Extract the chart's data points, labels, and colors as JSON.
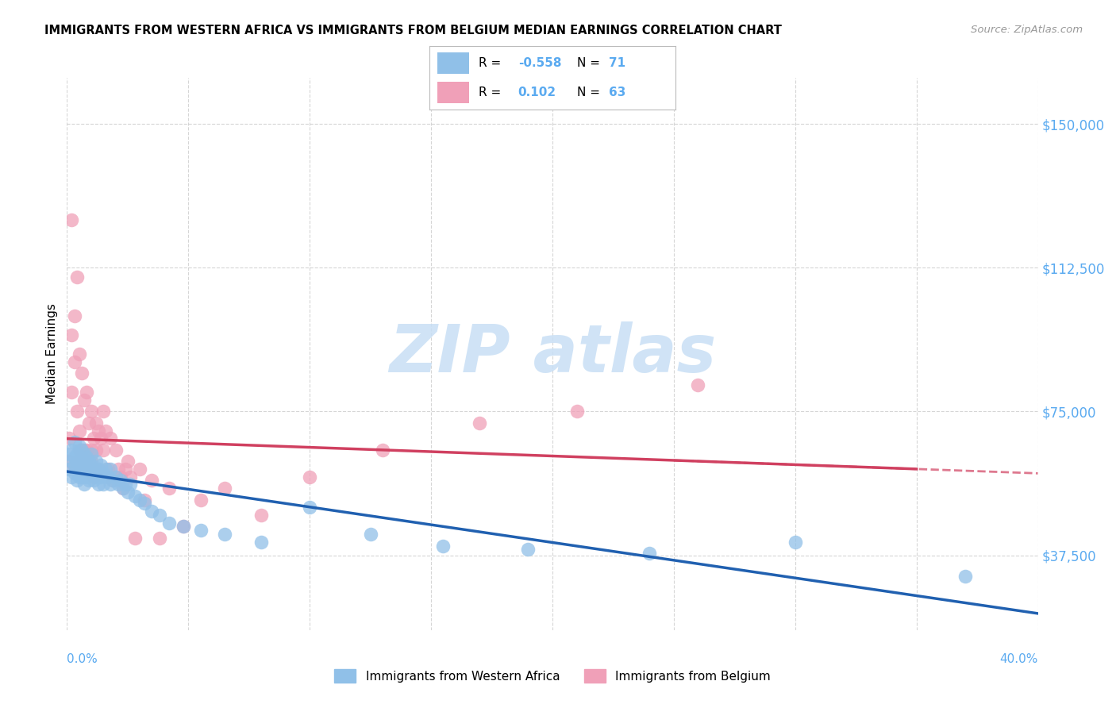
{
  "title": "IMMIGRANTS FROM WESTERN AFRICA VS IMMIGRANTS FROM BELGIUM MEDIAN EARNINGS CORRELATION CHART",
  "source_text": "Source: ZipAtlas.com",
  "ylabel": "Median Earnings",
  "yticks": [
    37500,
    75000,
    112500,
    150000
  ],
  "ytick_labels": [
    "$37,500",
    "$75,000",
    "$112,500",
    "$150,000"
  ],
  "xmin": 0.0,
  "xmax": 0.4,
  "ymin": 18000,
  "ymax": 162000,
  "legend_label_blue": "Immigrants from Western Africa",
  "legend_label_pink": "Immigrants from Belgium",
  "color_blue": "#90C0E8",
  "color_pink": "#F0A0B8",
  "color_blue_line": "#2060B0",
  "color_pink_line": "#D04060",
  "color_axis_labels": "#5AAAF0",
  "watermark_color": "#C8DFF5",
  "blue_scatter_x": [
    0.001,
    0.001,
    0.002,
    0.002,
    0.002,
    0.003,
    0.003,
    0.003,
    0.003,
    0.004,
    0.004,
    0.004,
    0.005,
    0.005,
    0.005,
    0.005,
    0.006,
    0.006,
    0.006,
    0.007,
    0.007,
    0.007,
    0.007,
    0.008,
    0.008,
    0.008,
    0.009,
    0.009,
    0.009,
    0.01,
    0.01,
    0.01,
    0.011,
    0.011,
    0.012,
    0.012,
    0.013,
    0.013,
    0.014,
    0.014,
    0.015,
    0.015,
    0.016,
    0.017,
    0.018,
    0.018,
    0.019,
    0.02,
    0.021,
    0.022,
    0.023,
    0.024,
    0.025,
    0.026,
    0.028,
    0.03,
    0.032,
    0.035,
    0.038,
    0.042,
    0.048,
    0.055,
    0.065,
    0.08,
    0.1,
    0.125,
    0.155,
    0.19,
    0.24,
    0.3,
    0.37
  ],
  "blue_scatter_y": [
    64000,
    60000,
    65000,
    62000,
    58000,
    63000,
    61000,
    67000,
    59000,
    64000,
    62000,
    57000,
    66000,
    61000,
    58000,
    63000,
    60000,
    65000,
    58000,
    62000,
    64000,
    59000,
    56000,
    63000,
    61000,
    58000,
    60000,
    62000,
    57000,
    64000,
    59000,
    61000,
    60000,
    57000,
    62000,
    58000,
    60000,
    56000,
    61000,
    58000,
    59000,
    56000,
    60000,
    58000,
    56000,
    60000,
    57000,
    58000,
    56000,
    57000,
    55000,
    56000,
    54000,
    56000,
    53000,
    52000,
    51000,
    49000,
    48000,
    46000,
    45000,
    44000,
    43000,
    41000,
    50000,
    43000,
    40000,
    39000,
    38000,
    41000,
    32000
  ],
  "pink_scatter_x": [
    0.001,
    0.001,
    0.002,
    0.002,
    0.002,
    0.003,
    0.003,
    0.003,
    0.004,
    0.004,
    0.004,
    0.005,
    0.005,
    0.005,
    0.006,
    0.006,
    0.006,
    0.007,
    0.007,
    0.007,
    0.008,
    0.008,
    0.008,
    0.009,
    0.009,
    0.01,
    0.01,
    0.01,
    0.011,
    0.011,
    0.012,
    0.012,
    0.013,
    0.013,
    0.014,
    0.015,
    0.015,
    0.016,
    0.017,
    0.018,
    0.019,
    0.02,
    0.021,
    0.022,
    0.023,
    0.024,
    0.025,
    0.026,
    0.028,
    0.03,
    0.032,
    0.035,
    0.038,
    0.042,
    0.048,
    0.055,
    0.065,
    0.08,
    0.1,
    0.13,
    0.17,
    0.21,
    0.26
  ],
  "pink_scatter_y": [
    62000,
    68000,
    80000,
    95000,
    125000,
    88000,
    100000,
    60000,
    110000,
    75000,
    62000,
    90000,
    65000,
    70000,
    85000,
    65000,
    60000,
    78000,
    65000,
    62000,
    80000,
    65000,
    60000,
    72000,
    60000,
    75000,
    65000,
    62000,
    68000,
    58000,
    72000,
    65000,
    70000,
    60000,
    68000,
    75000,
    65000,
    70000,
    60000,
    68000,
    57000,
    65000,
    60000,
    58000,
    55000,
    60000,
    62000,
    58000,
    42000,
    60000,
    52000,
    57000,
    42000,
    55000,
    45000,
    52000,
    55000,
    48000,
    58000,
    65000,
    72000,
    75000,
    82000
  ]
}
